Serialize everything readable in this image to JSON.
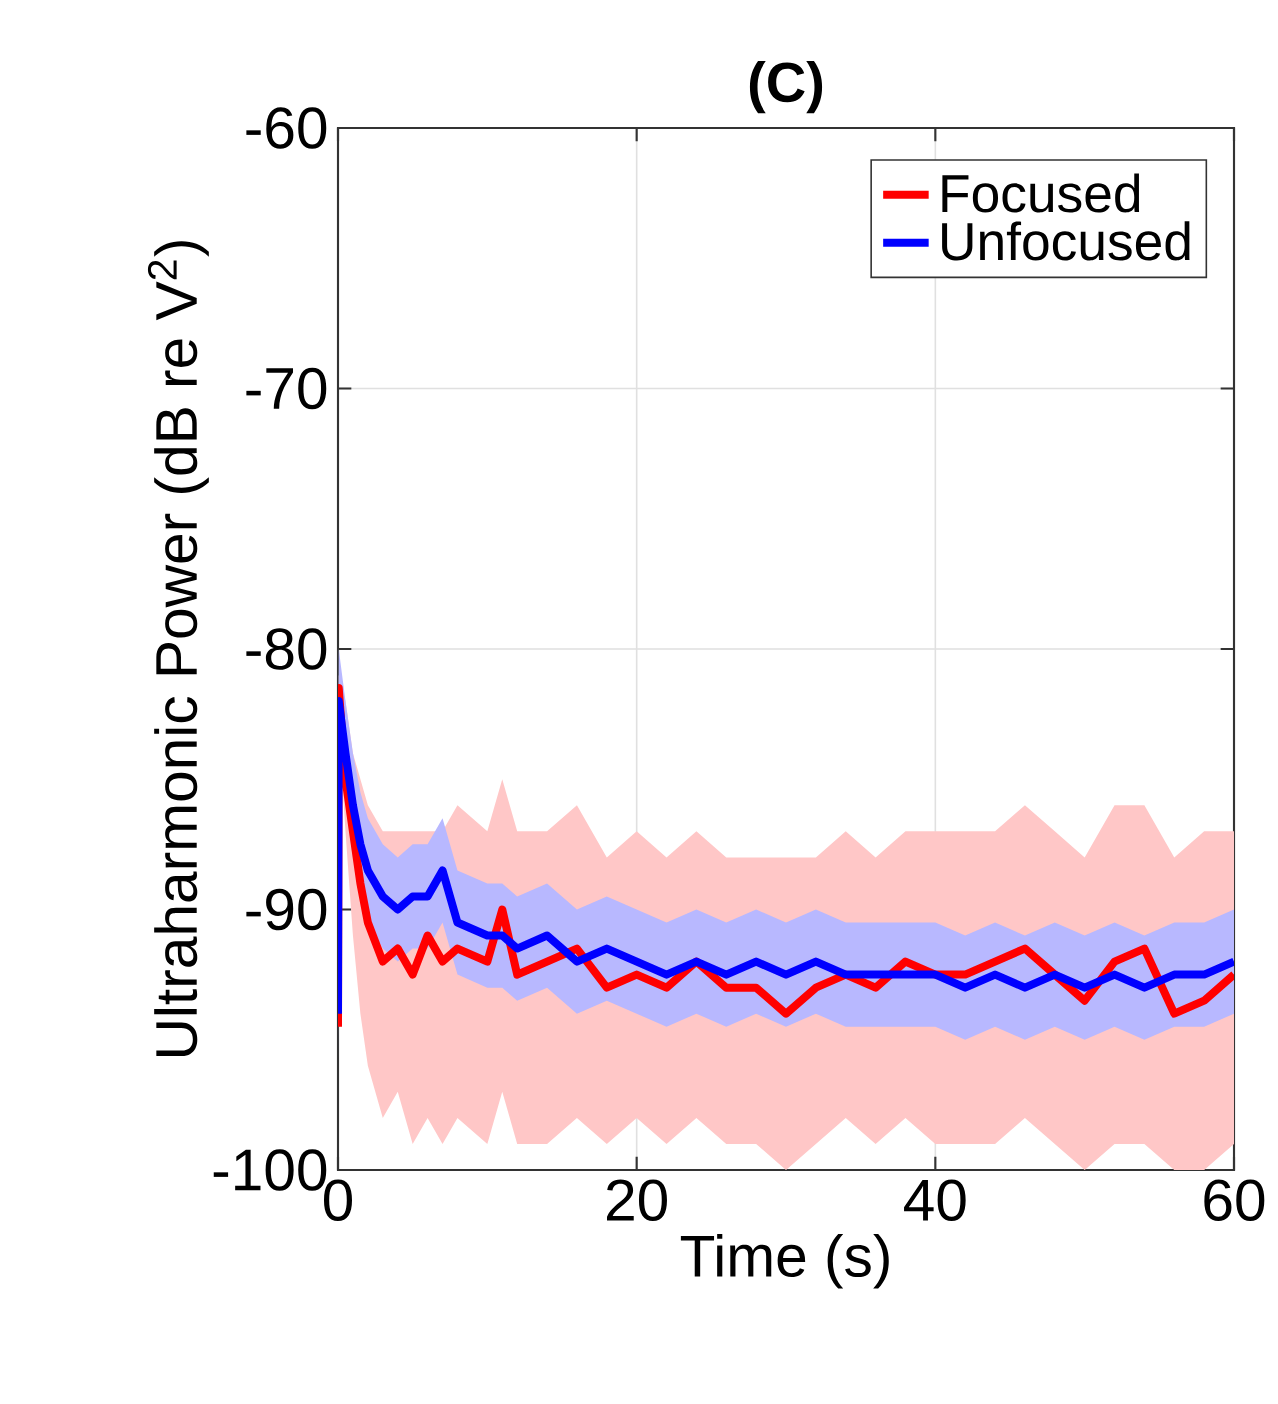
{
  "chart_data": {
    "type": "line",
    "title": "(C)",
    "xlabel": "Time (s)",
    "ylabel": "Ultraharmonic Power (dB re V$^{2}$)",
    "xlim": [
      0,
      60
    ],
    "ylim": [
      -100,
      -60
    ],
    "xticks": [
      0,
      20,
      40,
      60
    ],
    "yticks": [
      -100,
      -90,
      -80,
      -70,
      -60
    ],
    "grid": true,
    "legend": "top right",
    "x": [
      0,
      0.05,
      0.5,
      1,
      1.5,
      2,
      3,
      4,
      5,
      6,
      7,
      8,
      10,
      11,
      12,
      14,
      16,
      18,
      20,
      22,
      24,
      26,
      28,
      30,
      32,
      34,
      36,
      38,
      40,
      42,
      44,
      46,
      48,
      50,
      52,
      54,
      56,
      58,
      60
    ],
    "series": [
      {
        "name": "Focused",
        "color": "#ff0000",
        "values": [
          -94.5,
          -81.5,
          -85,
          -87,
          -89,
          -90.5,
          -92,
          -91.5,
          -92.5,
          -91,
          -92,
          -91.5,
          -92,
          -90,
          -92.5,
          -92,
          -91.5,
          -93,
          -92.5,
          -93,
          -92,
          -93,
          -93,
          -94,
          -93,
          -92.5,
          -93,
          -92,
          -92.5,
          -92.5,
          -92,
          -91.5,
          -92.5,
          -93.5,
          -92,
          -91.5,
          -94,
          -93.5,
          -92.5
        ],
        "lower": [
          -95,
          -83,
          -87,
          -91,
          -94,
          -96,
          -98,
          -97,
          -99,
          -98,
          -99,
          -98,
          -99,
          -97,
          -99,
          -99,
          -98,
          -99,
          -98,
          -99,
          -98,
          -99,
          -99,
          -100,
          -99,
          -98,
          -99,
          -98,
          -99,
          -99,
          -99,
          -98,
          -99,
          -100,
          -99,
          -99,
          -100,
          -100,
          -99
        ],
        "upper": [
          -94,
          -81,
          -82,
          -84,
          -85,
          -86,
          -87,
          -87,
          -87,
          -87,
          -87,
          -86,
          -87,
          -85,
          -87,
          -87,
          -86,
          -88,
          -87,
          -88,
          -87,
          -88,
          -88,
          -88,
          -88,
          -87,
          -88,
          -87,
          -87,
          -87,
          -87,
          -86,
          -87,
          -88,
          -86,
          -86,
          -88,
          -87,
          -87
        ]
      },
      {
        "name": "Unfocused",
        "color": "#0000ff",
        "values": [
          -94,
          -82,
          -84,
          -86,
          -87.5,
          -88.5,
          -89.5,
          -90,
          -89.5,
          -89.5,
          -88.5,
          -90.5,
          -91,
          -91,
          -91.5,
          -91,
          -92,
          -91.5,
          -92,
          -92.5,
          -92,
          -92.5,
          -92,
          -92.5,
          -92,
          -92.5,
          -92.5,
          -92.5,
          -92.5,
          -93,
          -92.5,
          -93,
          -92.5,
          -93,
          -92.5,
          -93,
          -92.5,
          -92.5,
          -92
        ],
        "lower": [
          -96,
          -84,
          -86,
          -88,
          -89.5,
          -90.5,
          -91.5,
          -92,
          -91.5,
          -91.5,
          -90.5,
          -92.5,
          -93,
          -93,
          -93.5,
          -93,
          -94,
          -93.5,
          -94,
          -94.5,
          -94,
          -94.5,
          -94,
          -94.5,
          -94,
          -94.5,
          -94.5,
          -94.5,
          -94.5,
          -95,
          -94.5,
          -95,
          -94.5,
          -95,
          -94.5,
          -95,
          -94.5,
          -94.5,
          -94
        ],
        "upper": [
          -92,
          -80,
          -82,
          -84,
          -85.5,
          -86.5,
          -87.5,
          -88,
          -87.5,
          -87.5,
          -86.5,
          -88.5,
          -89,
          -89,
          -89.5,
          -89,
          -90,
          -89.5,
          -90,
          -90.5,
          -90,
          -90.5,
          -90,
          -90.5,
          -90,
          -90.5,
          -90.5,
          -90.5,
          -90.5,
          -91,
          -90.5,
          -91,
          -90.5,
          -91,
          -90.5,
          -91,
          -90.5,
          -90.5,
          -90
        ]
      }
    ]
  }
}
